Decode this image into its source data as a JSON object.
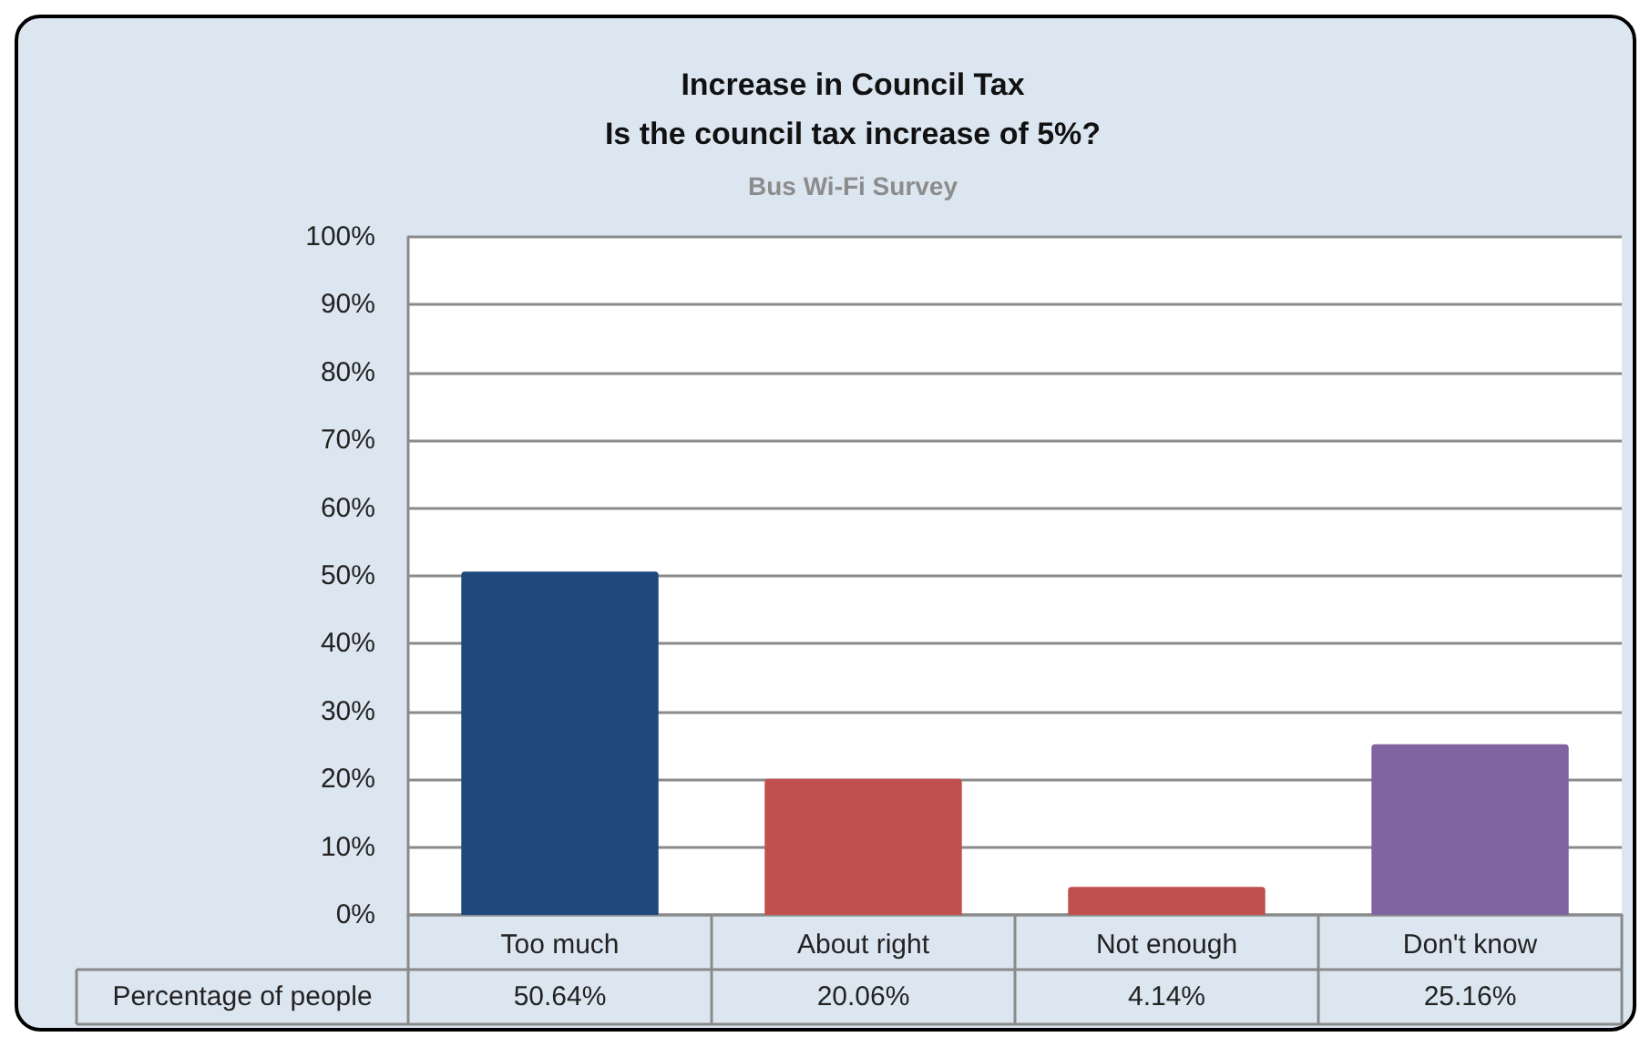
{
  "chart_data": {
    "type": "bar",
    "title": "Increase in Council Tax\nIs the council tax increase of 5%?",
    "subtitle": "Bus Wi-Fi Survey",
    "categories": [
      "Too much",
      "About right",
      "Not enough",
      "Don't know"
    ],
    "series": [
      {
        "name": "Percentage of people",
        "values": [
          50.64,
          20.06,
          4.14,
          25.16
        ],
        "colors": [
          "#1f497d",
          "#c0504d",
          "#c0504d",
          "#8064a2"
        ],
        "value_labels": [
          "50.64%",
          "20.06%",
          "4.14%",
          "25.16%"
        ]
      }
    ],
    "ylim": [
      0,
      100
    ],
    "yticks": [
      {
        "value": 0,
        "label": "0%"
      },
      {
        "value": 10,
        "label": "10%"
      },
      {
        "value": 20,
        "label": "20%"
      },
      {
        "value": 30,
        "label": "30%"
      },
      {
        "value": 40,
        "label": "40%"
      },
      {
        "value": 50,
        "label": "50%"
      },
      {
        "value": 60,
        "label": "60%"
      },
      {
        "value": 70,
        "label": "70%"
      },
      {
        "value": 80,
        "label": "80%"
      },
      {
        "value": 90,
        "label": "90%"
      },
      {
        "value": 100,
        "label": "100%"
      }
    ],
    "grid": "y"
  }
}
